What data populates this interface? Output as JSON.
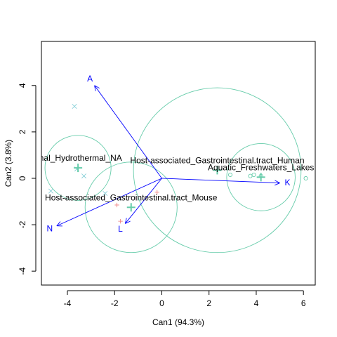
{
  "chart_data": {
    "type": "scatter",
    "xlabel": "Can1 (94.3%)",
    "ylabel": "Can2 (3.8%)",
    "xlim": [
      -5.1,
      6.5
    ],
    "ylim": [
      -4.6,
      5.9
    ],
    "x_ticks": [
      -4,
      -2,
      0,
      2,
      4,
      6
    ],
    "y_ticks": [
      -4,
      -2,
      0,
      2,
      4
    ],
    "x_tick_labels": [
      "-4",
      "-2",
      "0",
      "2",
      "4",
      "6"
    ],
    "y_tick_labels": [
      "-4",
      "-2",
      "0",
      "2",
      "4"
    ],
    "colors": {
      "group": "#66ccaa",
      "points_x": "#88d0d8",
      "points_plus": "#f08080",
      "points_circle": "#66ccaa",
      "vector": "#0000ff",
      "frame": "#000000"
    },
    "groups": [
      {
        "label": "rmal_Hydrothermal_NA",
        "center": [
          -3.55,
          0.45
        ],
        "radius": 1.4,
        "marker": "cross",
        "points": [
          [
            -3.7,
            3.1
          ],
          [
            -4.7,
            -0.55
          ],
          [
            -3.3,
            0.1
          ],
          [
            -3.6,
            0.4
          ],
          [
            -2.4,
            -0.65
          ]
        ]
      },
      {
        "label": "Host-associated_Gastrointestinal.tract_Mouse",
        "center": [
          -1.3,
          -1.25
        ],
        "radius": 1.95,
        "marker": "plus",
        "points": [
          [
            -0.2,
            -0.6
          ],
          [
            -1.9,
            -1.15
          ],
          [
            -1.75,
            -1.85
          ]
        ]
      },
      {
        "label": "Host-associated_Gastrointestinal.tract_Human",
        "center": [
          2.35,
          0.35
        ],
        "radius": 3.55,
        "marker": "circle",
        "points": [
          [
            2.9,
            0.15
          ],
          [
            3.9,
            0.15
          ]
        ]
      },
      {
        "label": "Aquatic_Freshwaters_Lakes",
        "center": [
          4.2,
          0.05
        ],
        "radius": 1.45,
        "marker": "circle",
        "points": [
          [
            3.75,
            0.1
          ],
          [
            6.1,
            0.0
          ],
          [
            4.2,
            0.1
          ]
        ]
      }
    ],
    "vectors": [
      {
        "label": "A",
        "end": [
          -2.85,
          4.0
        ]
      },
      {
        "label": "K",
        "end": [
          5.0,
          -0.2
        ]
      },
      {
        "label": "N",
        "end": [
          -4.45,
          -2.05
        ]
      },
      {
        "label": "L",
        "end": [
          -1.55,
          -1.95
        ]
      }
    ]
  }
}
